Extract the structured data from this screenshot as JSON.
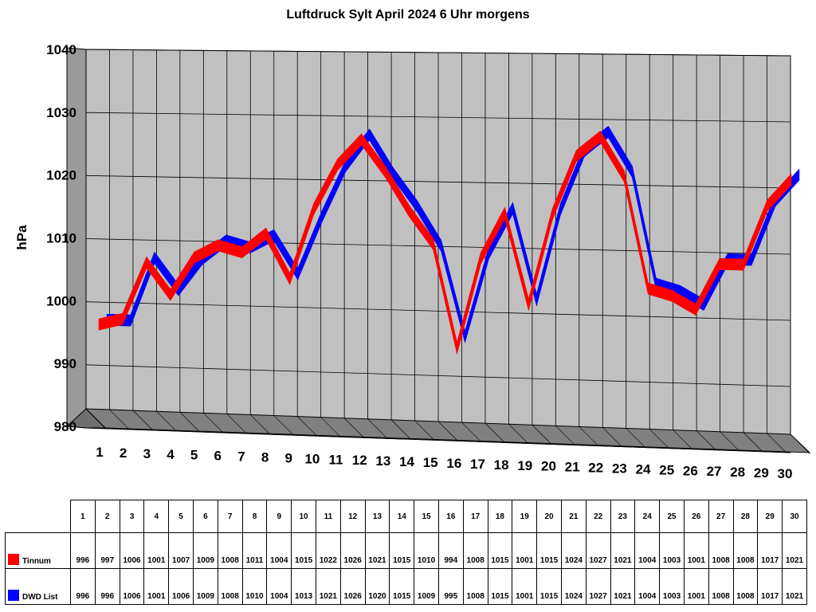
{
  "chart_data": {
    "type": "line",
    "title": "Luftdruck Sylt April 2024 6 Uhr morgens",
    "ylabel": "hPa",
    "xlabel": "",
    "ylim": [
      980,
      1040
    ],
    "yticks": [
      980,
      990,
      1000,
      1010,
      1020,
      1030,
      1040
    ],
    "grid": true,
    "three_d": true,
    "legend": "data-table-below",
    "categories": [
      "1",
      "2",
      "3",
      "4",
      "5",
      "6",
      "7",
      "8",
      "9",
      "10",
      "11",
      "12",
      "13",
      "14",
      "15",
      "16",
      "17",
      "18",
      "19",
      "20",
      "21",
      "22",
      "23",
      "24",
      "25",
      "26",
      "27",
      "28",
      "29",
      "30"
    ],
    "series": [
      {
        "name": "Tinnum",
        "color": "#ff0000",
        "values": [
          996,
          997,
          1006,
          1001,
          1007,
          1009,
          1008,
          1011,
          1004,
          1015,
          1022,
          1026,
          1021,
          1015,
          1010,
          994,
          1008,
          1015,
          1001,
          1015,
          1024,
          1027,
          1021,
          1004,
          1003,
          1001,
          1008,
          1008,
          1017,
          1021
        ]
      },
      {
        "name": "DWD List",
        "color": "#0000ff",
        "values": [
          996,
          996,
          1006,
          1001,
          1006,
          1009,
          1008,
          1010,
          1004,
          1013,
          1021,
          1026,
          1020,
          1015,
          1009,
          995,
          1008,
          1015,
          1001,
          1015,
          1024,
          1027,
          1021,
          1004,
          1003,
          1001,
          1008,
          1008,
          1017,
          1021
        ]
      }
    ]
  }
}
